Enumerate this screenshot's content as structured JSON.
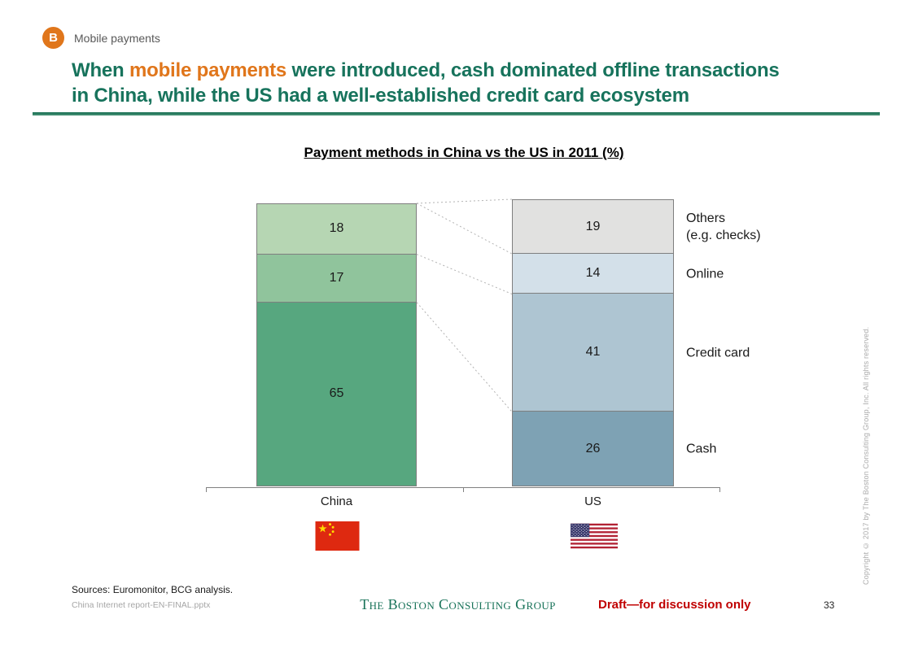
{
  "slide": {
    "badge": "B",
    "tracker_label": "Mobile payments",
    "title": {
      "prefix": "When ",
      "highlight": "mobile payments",
      "line1_rest": " were introduced, cash dominated offline transactions",
      "line2": "in China, while the US had a well-established credit card ecosystem"
    },
    "colors": {
      "title_green": "#17735C",
      "highlight_orange": "#E0761B",
      "badge_orange": "#E0761B",
      "divider_green": "#136A4E",
      "draft_red": "#C00000",
      "bcg_logo_green": "#177258",
      "segment_border_gray": "#7F7F7F",
      "connector_gray": "#B3B3B3"
    }
  },
  "chart_data": {
    "type": "bar",
    "variant": "100%-stacked-columns",
    "title": "Payment methods in China vs the US in 2011 (%)",
    "unit": "%",
    "categories": [
      "China",
      "US"
    ],
    "grid": false,
    "legend_position": "right-of-US-bar",
    "series": [
      {
        "name": "Others (e.g. checks)",
        "values": [
          18,
          19
        ]
      },
      {
        "name": "Online",
        "values": [
          17,
          14
        ]
      },
      {
        "name": "Credit card",
        "values": [
          0,
          41
        ]
      },
      {
        "name": "Cash",
        "values": [
          65,
          26
        ]
      }
    ],
    "bars": [
      {
        "category": "China",
        "segments": [
          {
            "label": "Others (e.g. checks)",
            "value": 18,
            "color": "#B6D6B3"
          },
          {
            "label": "Online",
            "value": 17,
            "color": "#90C49C"
          },
          {
            "label": "Cash",
            "value": 65,
            "color": "#57A77F"
          }
        ]
      },
      {
        "category": "US",
        "segments": [
          {
            "label": "Others (e.g. checks)",
            "value": 19,
            "color": "#E1E1E0"
          },
          {
            "label": "Online",
            "value": 14,
            "color": "#D3E0E9"
          },
          {
            "label": "Credit card",
            "value": 41,
            "color": "#AEC5D2"
          },
          {
            "label": "Cash",
            "value": 26,
            "color": "#7EA2B4"
          }
        ]
      }
    ],
    "right_labels": [
      {
        "lines": [
          "Others",
          "(e.g. checks)"
        ]
      },
      {
        "lines": [
          "Online"
        ]
      },
      {
        "lines": [
          "Credit card"
        ]
      },
      {
        "lines": [
          "Cash"
        ]
      }
    ],
    "connectors_cumulative_pct": [
      [
        0,
        0
      ],
      [
        0,
        19
      ],
      [
        18,
        33
      ],
      [
        35,
        74
      ]
    ]
  },
  "footer": {
    "sources": "Sources: Euromonitor, BCG analysis.",
    "filename": "China Internet report-EN-FINAL.pptx",
    "logo": "The Boston Consulting Group",
    "draft_note": "Draft—for discussion only",
    "page_number": "33"
  },
  "copyright_vertical": "Copyright © 2017 by The Boston Consulting Group, Inc. All rights reserved."
}
